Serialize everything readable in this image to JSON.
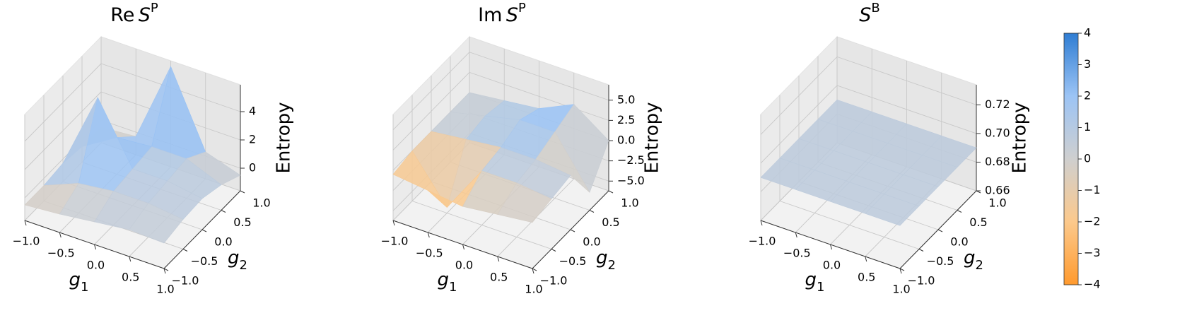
{
  "chart_data": [
    {
      "type": "surface3d",
      "title": {
        "op": "Re",
        "var": "S",
        "sup": "P"
      },
      "xlabel": {
        "var": "g",
        "sub": "1"
      },
      "ylabel": {
        "var": "g",
        "sub": "2"
      },
      "zlabel": "Entropy",
      "x": [
        -1,
        -0.5,
        0,
        0.5,
        1
      ],
      "y": [
        -1,
        -0.5,
        0,
        0.5,
        1
      ],
      "z": [
        [
          -0.5,
          -0.3,
          0,
          0.3,
          0.2
        ],
        [
          -0.5,
          0.5,
          0.8,
          0.8,
          0.5
        ],
        [
          -0.3,
          5.2,
          1,
          1,
          0.6
        ],
        [
          -0.5,
          1,
          1.2,
          1.2,
          0.2
        ],
        [
          -0.5,
          -0.3,
          5.5,
          0.3,
          -0.5
        ]
      ],
      "xlim": [
        -1,
        1
      ],
      "ylim": [
        -1,
        1
      ],
      "zlim": [
        -1.6,
        5.9
      ],
      "xticks": [
        {
          "value": -1,
          "label": "−1.0"
        },
        {
          "value": -0.5,
          "label": "−0.5"
        },
        {
          "value": 0,
          "label": "0.0"
        },
        0.5,
        {
          "value": 1,
          "label": "1.0"
        }
      ],
      "yticks": [
        {
          "value": -1,
          "label": "−1.0"
        },
        {
          "value": -0.5,
          "label": "−0.5"
        },
        {
          "value": 0,
          "label": "0.0"
        },
        0.5,
        {
          "value": 1,
          "label": "1.0"
        }
      ],
      "zticks": [
        0,
        2,
        4
      ],
      "grid": true
    },
    {
      "type": "surface3d",
      "title": {
        "op": "Im",
        "var": "S",
        "sup": "P"
      },
      "xlabel": {
        "var": "g",
        "sub": "1"
      },
      "ylabel": {
        "var": "g",
        "sub": "2"
      },
      "zlabel": "Entropy",
      "x": [
        -1,
        -0.5,
        0,
        0.5,
        1
      ],
      "y": [
        -1,
        -0.5,
        0,
        0.5,
        1
      ],
      "z": [
        [
          -0.5,
          -1,
          -1.5,
          -1,
          -0.5
        ],
        [
          0,
          -5.5,
          0.5,
          0.5,
          0
        ],
        [
          0,
          0.5,
          1,
          1,
          0.5
        ],
        [
          0,
          1,
          2,
          2,
          -4
        ],
        [
          0,
          0.5,
          1,
          3,
          0
        ]
      ],
      "xlim": [
        -1,
        1
      ],
      "ylim": [
        -1,
        1
      ],
      "zlim": [
        -6.2,
        6.9
      ],
      "xticks": [
        {
          "value": -1,
          "label": "−1.0"
        },
        {
          "value": -0.5,
          "label": "−0.5"
        },
        {
          "value": 0,
          "label": "0.0"
        },
        0.5,
        {
          "value": 1,
          "label": "1.0"
        }
      ],
      "yticks": [
        {
          "value": -1,
          "label": "−1.0"
        },
        {
          "value": -0.5,
          "label": "−0.5"
        },
        {
          "value": 0,
          "label": "0.0"
        },
        0.5,
        {
          "value": 1,
          "label": "1.0"
        }
      ],
      "zticks": [
        {
          "value": -5,
          "label": "−5.0"
        },
        {
          "value": -2.5,
          "label": "−2.5"
        },
        {
          "value": 0,
          "label": "0.0"
        },
        2.5,
        {
          "value": 5,
          "label": "5.0"
        }
      ],
      "grid": true
    },
    {
      "type": "surface3d",
      "title": {
        "var": "S",
        "sup": "B"
      },
      "xlabel": {
        "var": "g",
        "sub": "1"
      },
      "ylabel": {
        "var": "g",
        "sub": "2"
      },
      "zlabel": "Entropy",
      "x": [
        -1,
        -0.5,
        0,
        0.5,
        1
      ],
      "y": [
        -1,
        -0.5,
        0,
        0.5,
        1
      ],
      "z": [
        [
          0.69,
          0.69,
          0.69,
          0.69,
          0.69
        ],
        [
          0.69,
          0.69,
          0.69,
          0.69,
          0.69
        ],
        [
          0.69,
          0.69,
          0.69,
          0.69,
          0.69
        ],
        [
          0.69,
          0.69,
          0.69,
          0.69,
          0.69
        ],
        [
          0.69,
          0.69,
          0.69,
          0.69,
          0.69
        ]
      ],
      "xlim": [
        -1,
        1
      ],
      "ylim": [
        -1,
        1
      ],
      "zlim": [
        0.66,
        0.734
      ],
      "xticks": [
        {
          "value": -1,
          "label": "−1.0"
        },
        {
          "value": -0.5,
          "label": "−0.5"
        },
        {
          "value": 0,
          "label": "0.0"
        },
        0.5,
        {
          "value": 1,
          "label": "1.0"
        }
      ],
      "yticks": [
        {
          "value": -1,
          "label": "−1.0"
        },
        {
          "value": -0.5,
          "label": "−0.5"
        },
        {
          "value": 0,
          "label": "0.0"
        },
        0.5,
        {
          "value": 1,
          "label": "1.0"
        }
      ],
      "zticks": [
        0.66,
        0.68,
        {
          "value": 0.7,
          "label": "0.70"
        },
        0.72
      ],
      "grid": true
    }
  ],
  "colorbar": {
    "lim": [
      -4,
      4
    ],
    "ticks": [
      4,
      3,
      2,
      1,
      0,
      {
        "value": -1,
        "label": "−1"
      },
      {
        "value": -2,
        "label": "−2"
      },
      {
        "value": -3,
        "label": "−3"
      },
      {
        "value": -4,
        "label": "−4"
      }
    ],
    "colors": [
      "#ff9a2e",
      "#fcc98c",
      "#cfcfcf",
      "#9cc4f5",
      "#2f7dd3"
    ]
  }
}
